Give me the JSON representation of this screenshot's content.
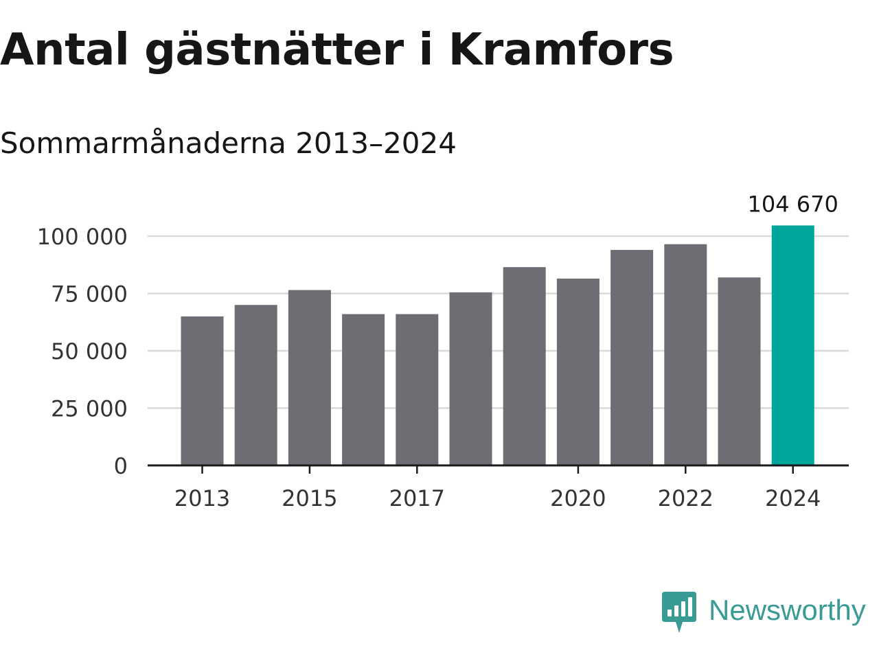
{
  "title": "Antal gästnätter i Kramfors",
  "subtitle": "Sommarmånaderna 2013–2024",
  "brand": {
    "name": "Newsworthy",
    "icon": "newsworthy-logo-icon",
    "color": "#3a9b95"
  },
  "colors": {
    "bar": "#6e6d73",
    "highlight": "#00a59b",
    "grid": "#d9d9d9",
    "axis": "#1a1a1a",
    "text": "#333333"
  },
  "chart_data": {
    "type": "bar",
    "title": "Antal gästnätter i Kramfors",
    "subtitle": "Sommarmånaderna 2013–2024",
    "xlabel": "",
    "ylabel": "",
    "categories": [
      "2013",
      "2014",
      "2015",
      "2016",
      "2017",
      "2018",
      "2019",
      "2020",
      "2021",
      "2022",
      "2023",
      "2024"
    ],
    "values": [
      65000,
      70000,
      76500,
      66000,
      66000,
      75500,
      86500,
      81500,
      94000,
      96500,
      82000,
      104670
    ],
    "highlight_index": 11,
    "highlight_label": "104 670",
    "ylim": [
      0,
      106000
    ],
    "yticks": [
      0,
      25000,
      50000,
      75000,
      100000
    ],
    "ytick_labels": [
      "0",
      "25 000",
      "50 000",
      "75 000",
      "100 000"
    ],
    "xtick_labels": [
      "2013",
      "2015",
      "2017",
      "2020",
      "2022",
      "2024"
    ],
    "grid": true,
    "legend": "none"
  }
}
